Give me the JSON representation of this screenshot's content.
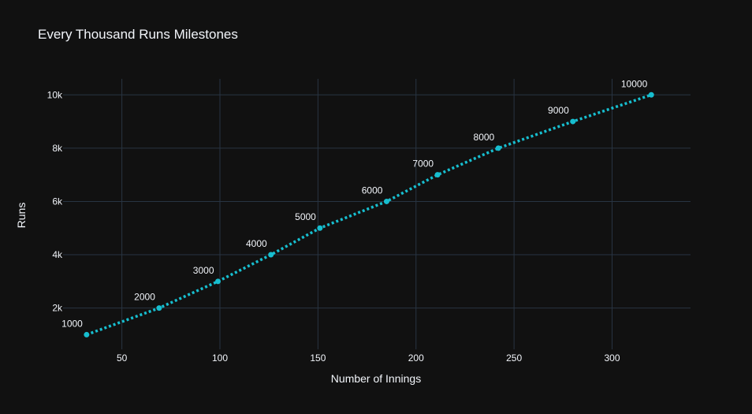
{
  "chart_data": {
    "type": "line",
    "title": "Every Thousand Runs Milestones",
    "xlabel": "Number of Innings",
    "ylabel": "Runs",
    "xlim": [
      20,
      340
    ],
    "ylim": [
      450,
      10600
    ],
    "xticks": [
      50,
      100,
      150,
      200,
      250,
      300
    ],
    "yticks": [
      2000,
      4000,
      6000,
      8000,
      10000
    ],
    "ytick_labels": [
      "2k",
      "4k",
      "6k",
      "8k",
      "10k"
    ],
    "grid": true,
    "line_style": "dotted",
    "series": [
      {
        "x": [
          32,
          69,
          99,
          126,
          151,
          185,
          211,
          242,
          280,
          320
        ],
        "y": [
          1000,
          2000,
          3000,
          4000,
          5000,
          6000,
          7000,
          8000,
          9000,
          10000
        ],
        "labels": [
          "1000",
          "2000",
          "3000",
          "4000",
          "5000",
          "6000",
          "7000",
          "8000",
          "9000",
          "10000"
        ]
      }
    ],
    "colors": {
      "background": "#111111",
      "grid": "#283442",
      "line": "#17becf",
      "text": "#f2f5fa"
    }
  }
}
